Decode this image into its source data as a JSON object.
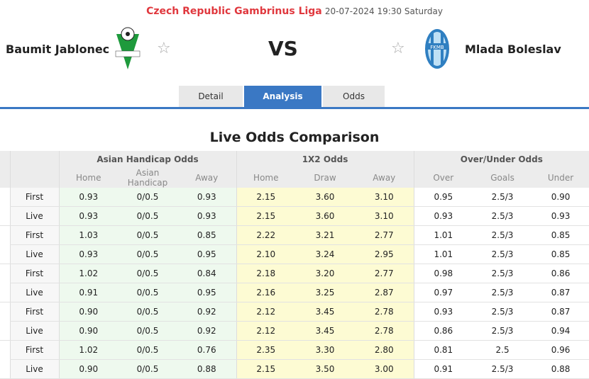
{
  "header": {
    "league": "Czech Republic Gambrinus Liga",
    "datetime": "20-07-2024 19:30 Saturday",
    "home": "Baumit Jablonec",
    "away": "Mlada Boleslav",
    "vs": "VS"
  },
  "tabs": [
    "Detail",
    "Analysis",
    "Odds"
  ],
  "active_tab": "Analysis",
  "section_title": "Live Odds Comparison",
  "groups": [
    "Asian Handicap Odds",
    "1X2 Odds",
    "Over/Under Odds"
  ],
  "subheaders": [
    "Home",
    "Asian Handicap",
    "Away",
    "Home",
    "Draw",
    "Away",
    "Over",
    "Goals",
    "Under"
  ],
  "rows": [
    [
      "First",
      "0.93",
      "0/0.5",
      "0.93",
      "2.15",
      "3.60",
      "3.10",
      "0.95",
      "2.5/3",
      "0.90"
    ],
    [
      "Live",
      "0.93",
      "0/0.5",
      "0.93",
      "2.15",
      "3.60",
      "3.10",
      "0.93",
      "2.5/3",
      "0.93"
    ],
    [
      "First",
      "1.03",
      "0/0.5",
      "0.85",
      "2.22",
      "3.21",
      "2.77",
      "1.01",
      "2.5/3",
      "0.85"
    ],
    [
      "Live",
      "0.93",
      "0/0.5",
      "0.95",
      "2.10",
      "3.24",
      "2.95",
      "1.01",
      "2.5/3",
      "0.85"
    ],
    [
      "First",
      "1.02",
      "0/0.5",
      "0.84",
      "2.18",
      "3.20",
      "2.77",
      "0.98",
      "2.5/3",
      "0.86"
    ],
    [
      "Live",
      "0.91",
      "0/0.5",
      "0.95",
      "2.16",
      "3.25",
      "2.87",
      "0.97",
      "2.5/3",
      "0.87"
    ],
    [
      "First",
      "0.90",
      "0/0.5",
      "0.92",
      "2.12",
      "3.45",
      "2.78",
      "0.93",
      "2.5/3",
      "0.87"
    ],
    [
      "Live",
      "0.90",
      "0/0.5",
      "0.92",
      "2.12",
      "3.45",
      "2.78",
      "0.86",
      "2.5/3",
      "0.94"
    ],
    [
      "First",
      "1.02",
      "0/0.5",
      "0.76",
      "2.35",
      "3.30",
      "2.80",
      "0.81",
      "2.5",
      "0.96"
    ],
    [
      "Live",
      "0.90",
      "0/0.5",
      "0.88",
      "2.15",
      "3.50",
      "3.00",
      "0.91",
      "2.5/3",
      "0.88"
    ]
  ]
}
